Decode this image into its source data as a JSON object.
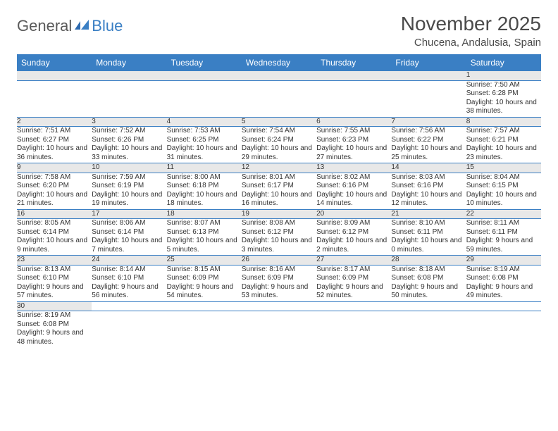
{
  "logo": {
    "part1": "General",
    "part2": "Blue"
  },
  "title": "November 2025",
  "location": "Chucena, Andalusia, Spain",
  "colors": {
    "header_bg": "#3a7fc4",
    "header_text": "#ffffff",
    "daynum_bg": "#e8e8e8",
    "row_border": "#3a7fc4",
    "logo_gray": "#5a5a5a",
    "logo_blue": "#3a7fc4",
    "title_color": "#4a4a4a"
  },
  "weekdays": [
    "Sunday",
    "Monday",
    "Tuesday",
    "Wednesday",
    "Thursday",
    "Friday",
    "Saturday"
  ],
  "weeks": [
    [
      null,
      null,
      null,
      null,
      null,
      null,
      {
        "n": "1",
        "sr": "7:50 AM",
        "ss": "6:28 PM",
        "dl": "10 hours and 38 minutes."
      }
    ],
    [
      {
        "n": "2",
        "sr": "7:51 AM",
        "ss": "6:27 PM",
        "dl": "10 hours and 36 minutes."
      },
      {
        "n": "3",
        "sr": "7:52 AM",
        "ss": "6:26 PM",
        "dl": "10 hours and 33 minutes."
      },
      {
        "n": "4",
        "sr": "7:53 AM",
        "ss": "6:25 PM",
        "dl": "10 hours and 31 minutes."
      },
      {
        "n": "5",
        "sr": "7:54 AM",
        "ss": "6:24 PM",
        "dl": "10 hours and 29 minutes."
      },
      {
        "n": "6",
        "sr": "7:55 AM",
        "ss": "6:23 PM",
        "dl": "10 hours and 27 minutes."
      },
      {
        "n": "7",
        "sr": "7:56 AM",
        "ss": "6:22 PM",
        "dl": "10 hours and 25 minutes."
      },
      {
        "n": "8",
        "sr": "7:57 AM",
        "ss": "6:21 PM",
        "dl": "10 hours and 23 minutes."
      }
    ],
    [
      {
        "n": "9",
        "sr": "7:58 AM",
        "ss": "6:20 PM",
        "dl": "10 hours and 21 minutes."
      },
      {
        "n": "10",
        "sr": "7:59 AM",
        "ss": "6:19 PM",
        "dl": "10 hours and 19 minutes."
      },
      {
        "n": "11",
        "sr": "8:00 AM",
        "ss": "6:18 PM",
        "dl": "10 hours and 18 minutes."
      },
      {
        "n": "12",
        "sr": "8:01 AM",
        "ss": "6:17 PM",
        "dl": "10 hours and 16 minutes."
      },
      {
        "n": "13",
        "sr": "8:02 AM",
        "ss": "6:16 PM",
        "dl": "10 hours and 14 minutes."
      },
      {
        "n": "14",
        "sr": "8:03 AM",
        "ss": "6:16 PM",
        "dl": "10 hours and 12 minutes."
      },
      {
        "n": "15",
        "sr": "8:04 AM",
        "ss": "6:15 PM",
        "dl": "10 hours and 10 minutes."
      }
    ],
    [
      {
        "n": "16",
        "sr": "8:05 AM",
        "ss": "6:14 PM",
        "dl": "10 hours and 9 minutes."
      },
      {
        "n": "17",
        "sr": "8:06 AM",
        "ss": "6:14 PM",
        "dl": "10 hours and 7 minutes."
      },
      {
        "n": "18",
        "sr": "8:07 AM",
        "ss": "6:13 PM",
        "dl": "10 hours and 5 minutes."
      },
      {
        "n": "19",
        "sr": "8:08 AM",
        "ss": "6:12 PM",
        "dl": "10 hours and 3 minutes."
      },
      {
        "n": "20",
        "sr": "8:09 AM",
        "ss": "6:12 PM",
        "dl": "10 hours and 2 minutes."
      },
      {
        "n": "21",
        "sr": "8:10 AM",
        "ss": "6:11 PM",
        "dl": "10 hours and 0 minutes."
      },
      {
        "n": "22",
        "sr": "8:11 AM",
        "ss": "6:11 PM",
        "dl": "9 hours and 59 minutes."
      }
    ],
    [
      {
        "n": "23",
        "sr": "8:13 AM",
        "ss": "6:10 PM",
        "dl": "9 hours and 57 minutes."
      },
      {
        "n": "24",
        "sr": "8:14 AM",
        "ss": "6:10 PM",
        "dl": "9 hours and 56 minutes."
      },
      {
        "n": "25",
        "sr": "8:15 AM",
        "ss": "6:09 PM",
        "dl": "9 hours and 54 minutes."
      },
      {
        "n": "26",
        "sr": "8:16 AM",
        "ss": "6:09 PM",
        "dl": "9 hours and 53 minutes."
      },
      {
        "n": "27",
        "sr": "8:17 AM",
        "ss": "6:09 PM",
        "dl": "9 hours and 52 minutes."
      },
      {
        "n": "28",
        "sr": "8:18 AM",
        "ss": "6:08 PM",
        "dl": "9 hours and 50 minutes."
      },
      {
        "n": "29",
        "sr": "8:19 AM",
        "ss": "6:08 PM",
        "dl": "9 hours and 49 minutes."
      }
    ],
    [
      {
        "n": "30",
        "sr": "8:19 AM",
        "ss": "6:08 PM",
        "dl": "9 hours and 48 minutes."
      },
      null,
      null,
      null,
      null,
      null,
      null
    ]
  ],
  "labels": {
    "sunrise": "Sunrise:",
    "sunset": "Sunset:",
    "daylight": "Daylight:"
  }
}
